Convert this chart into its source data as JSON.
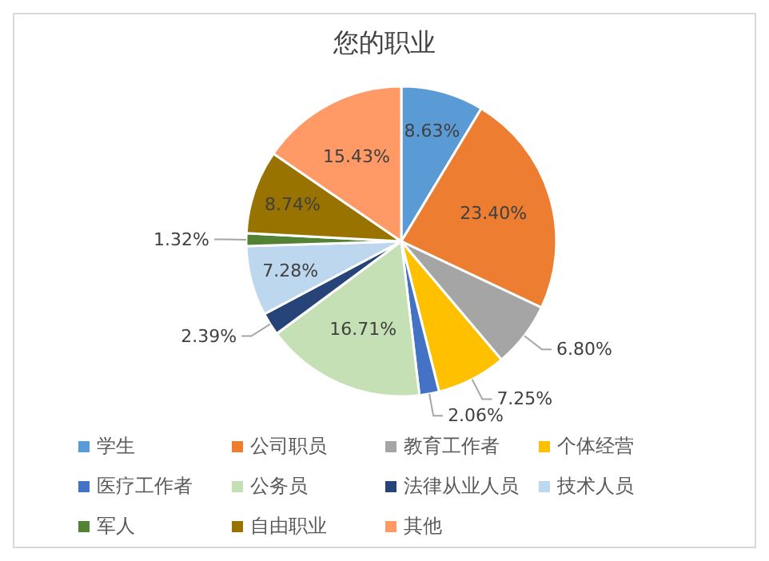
{
  "chart_data": {
    "type": "pie",
    "title": "您的职业",
    "categories": [
      "学生",
      "公司职员",
      "教育工作者",
      "个体经营",
      "医疗工作者",
      "公务员",
      "法律从业人员",
      "技术人员",
      "军人",
      "自由职业",
      "其他"
    ],
    "values": [
      8.63,
      23.4,
      6.8,
      7.25,
      2.06,
      16.71,
      2.39,
      7.28,
      1.32,
      8.74,
      15.43
    ],
    "colors": [
      "#5b9bd5",
      "#ed7d31",
      "#a5a5a5",
      "#ffc000",
      "#4472c4",
      "#c5e0b4",
      "#264478",
      "#bdd7ee",
      "#548235",
      "#997300",
      "#ff9966"
    ],
    "value_labels": [
      "8.63%",
      "23.40%",
      "6.80%",
      "7.25%",
      "2.06%",
      "16.71%",
      "2.39%",
      "7.28%",
      "1.32%",
      "8.74%",
      "15.43%"
    ],
    "legend": "bottom"
  }
}
